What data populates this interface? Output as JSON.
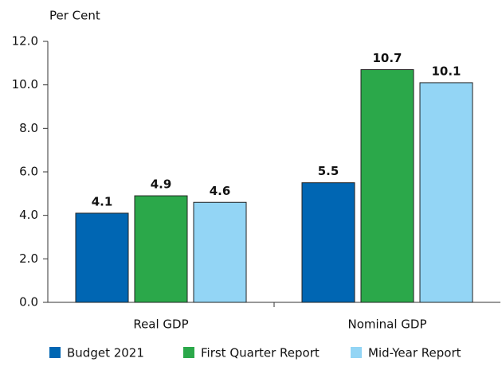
{
  "chart_data": {
    "type": "bar",
    "y_axis_label": "Per Cent",
    "categories": [
      "Real GDP",
      "Nominal GDP"
    ],
    "series": [
      {
        "name": "Budget 2021",
        "color": "#0066b3",
        "values": [
          4.1,
          5.5
        ]
      },
      {
        "name": "First Quarter Report",
        "color": "#2ba84a",
        "values": [
          4.9,
          10.7
        ]
      },
      {
        "name": "Mid-Year Report",
        "color": "#93d5f5",
        "values": [
          4.6,
          10.1
        ]
      }
    ],
    "ylim": [
      0,
      12
    ],
    "yticks": [
      {
        "value": 0,
        "label": "0.0"
      },
      {
        "value": 2,
        "label": "2.0"
      },
      {
        "value": 4,
        "label": "4.0"
      },
      {
        "value": 6,
        "label": "6.0"
      },
      {
        "value": 8,
        "label": "8.0"
      },
      {
        "value": 10,
        "label": "10.0"
      },
      {
        "value": 12,
        "label": "12.0"
      }
    ],
    "grid": false,
    "legend": "bottom"
  }
}
